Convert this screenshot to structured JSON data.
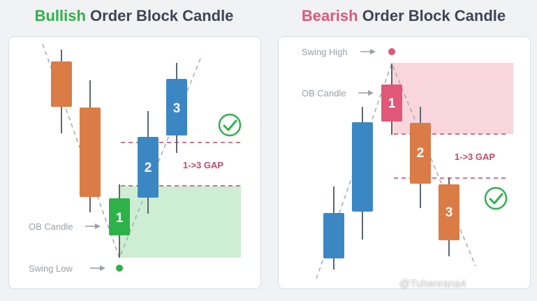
{
  "bullish": {
    "title_keyword": "Bullish",
    "title_rest": "Order Block Candle",
    "ob_label": "OB Candle",
    "swing_label": "Swing Low",
    "gap_label": "1->3 GAP",
    "candle_numbers": [
      "1",
      "2",
      "3"
    ]
  },
  "bearish": {
    "title_keyword": "Bearish",
    "title_rest": "Order Block Candle",
    "ob_label": "OB Candle",
    "swing_label": "Swing High",
    "gap_label": "1->3 GAP",
    "candle_numbers": [
      "1",
      "2",
      "3"
    ]
  },
  "watermark": "@Tuhenrana4",
  "colors": {
    "bullish_accent": "#2fb14a",
    "bearish_accent": "#e05778",
    "orange_candle": "#db7b45",
    "blue_candle": "#3b87c4",
    "green_zone": "#cdeed2",
    "pink_zone": "#f8d6dc",
    "gap_line": "#c7476a",
    "check": "#2fb14a"
  }
}
